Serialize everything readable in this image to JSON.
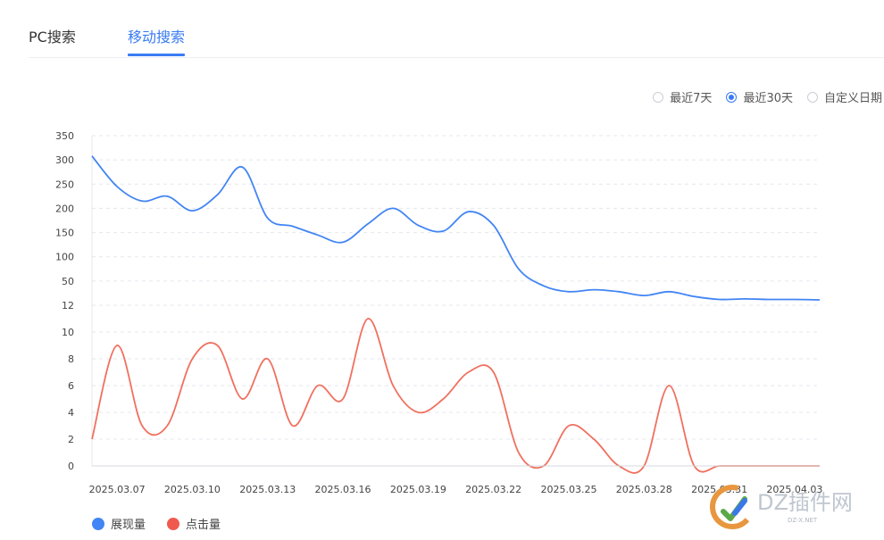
{
  "tabs": [
    {
      "label": "PC搜索"
    },
    {
      "label": "移动搜索"
    }
  ],
  "range_options": [
    {
      "label": "最近7天",
      "selected": false
    },
    {
      "label": "最近30天",
      "selected": true
    },
    {
      "label": "自定义日期",
      "selected": false
    }
  ],
  "colors": {
    "accent": "#3a7bf4",
    "impressions": "#4285f4",
    "clicks": "#f0705f"
  },
  "legend": [
    {
      "label": "展现量",
      "color": "#4285f4"
    },
    {
      "label": "点击量",
      "color": "#f0705f"
    }
  ],
  "watermark": {
    "text": "DZ插件网",
    "subtext": "DZ-X.NET"
  },
  "chart_data": [
    {
      "type": "line",
      "x": [
        "2025.03.06",
        "2025.03.07",
        "2025.03.08",
        "2025.03.09",
        "2025.03.10",
        "2025.03.11",
        "2025.03.12",
        "2025.03.13",
        "2025.03.14",
        "2025.03.15",
        "2025.03.16",
        "2025.03.17",
        "2025.03.18",
        "2025.03.19",
        "2025.03.20",
        "2025.03.21",
        "2025.03.22",
        "2025.03.23",
        "2025.03.24",
        "2025.03.25",
        "2025.03.26",
        "2025.03.27",
        "2025.03.28",
        "2025.03.29",
        "2025.03.30",
        "2025.03.31",
        "2025.04.01",
        "2025.04.02",
        "2025.04.03",
        "2025.04.04"
      ],
      "series": [
        {
          "name": "展现量",
          "values": [
            308,
            245,
            215,
            225,
            195,
            228,
            285,
            180,
            163,
            145,
            130,
            168,
            200,
            165,
            153,
            193,
            165,
            75,
            40,
            28,
            32,
            28,
            20,
            28,
            18,
            12,
            13,
            12,
            12,
            11
          ]
        }
      ],
      "y_ticks": [
        350,
        300,
        250,
        200,
        150,
        100,
        50
      ],
      "ylim": [
        0,
        350
      ]
    },
    {
      "type": "line",
      "x": [
        "2025.03.06",
        "2025.03.07",
        "2025.03.08",
        "2025.03.09",
        "2025.03.10",
        "2025.03.11",
        "2025.03.12",
        "2025.03.13",
        "2025.03.14",
        "2025.03.15",
        "2025.03.16",
        "2025.03.17",
        "2025.03.18",
        "2025.03.19",
        "2025.03.20",
        "2025.03.21",
        "2025.03.22",
        "2025.03.23",
        "2025.03.24",
        "2025.03.25",
        "2025.03.26",
        "2025.03.27",
        "2025.03.28",
        "2025.03.29",
        "2025.03.30",
        "2025.03.31",
        "2025.04.01",
        "2025.04.02",
        "2025.04.03",
        "2025.04.04"
      ],
      "series": [
        {
          "name": "点击量",
          "values": [
            2,
            9,
            3,
            3,
            8,
            9,
            5,
            8,
            3,
            6,
            5,
            11,
            6,
            4,
            5,
            7,
            7,
            1,
            0,
            3,
            2,
            0,
            0,
            6,
            0,
            0,
            0,
            0,
            0,
            0
          ]
        }
      ],
      "y_ticks": [
        12,
        10,
        8,
        6,
        4,
        2,
        0
      ],
      "ylim": [
        0,
        12
      ]
    }
  ],
  "x_tick_labels": [
    "2025.03.07",
    "2025.03.10",
    "2025.03.13",
    "2025.03.16",
    "2025.03.19",
    "2025.03.22",
    "2025.03.25",
    "2025.03.28",
    "2025.03.31",
    "2025.04.03"
  ]
}
